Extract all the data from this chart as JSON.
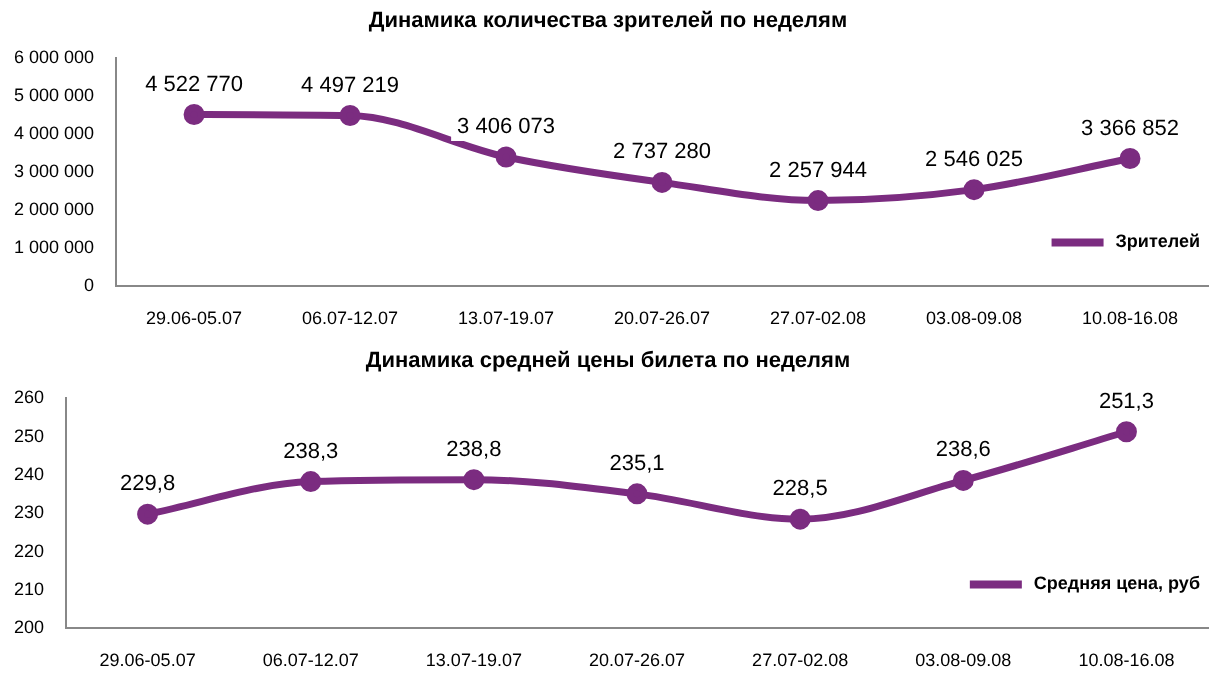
{
  "chart_data": [
    {
      "type": "line",
      "title": "Динамика количества зрителей по неделям",
      "categories": [
        "29.06-05.07",
        "06.07-12.07",
        "13.07-19.07",
        "20.07-26.07",
        "27.07-02.08",
        "03.08-09.08",
        "10.08-16.08"
      ],
      "series": [
        {
          "name": "Зрителей",
          "color": "#7b2c80",
          "values": [
            4522770,
            4497219,
            3406073,
            2737280,
            2257944,
            2546025,
            3366852
          ],
          "value_labels": [
            "4 522 770",
            "4 497 219",
            "3 406 073",
            "2 737 280",
            "2 257 944",
            "2 546 025",
            "3 366 852"
          ]
        }
      ],
      "ylim": [
        0,
        6000000
      ],
      "yticks": [
        {
          "value": 0,
          "label": "0"
        },
        {
          "value": 1000000,
          "label": "1 000 000"
        },
        {
          "value": 2000000,
          "label": "2 000 000"
        },
        {
          "value": 3000000,
          "label": "3 000 000"
        },
        {
          "value": 4000000,
          "label": "4 000 000"
        },
        {
          "value": 5000000,
          "label": "5 000 000"
        },
        {
          "value": 6000000,
          "label": "6 000 000"
        }
      ],
      "legend": "bottom right",
      "marker": "circle"
    },
    {
      "type": "line",
      "title": "Динамика средней цены билета по неделям",
      "categories": [
        "29.06-05.07",
        "06.07-12.07",
        "13.07-19.07",
        "20.07-26.07",
        "27.07-02.08",
        "03.08-09.08",
        "10.08-16.08"
      ],
      "series": [
        {
          "name": "Средняя цена, руб",
          "color": "#7b2c80",
          "values": [
            229.8,
            238.3,
            238.8,
            235.1,
            228.5,
            238.6,
            251.3
          ],
          "value_labels": [
            "229,8",
            "238,3",
            "238,8",
            "235,1",
            "228,5",
            "238,6",
            "251,3"
          ]
        }
      ],
      "ylim": [
        200,
        260
      ],
      "yticks": [
        200,
        210,
        220,
        230,
        240,
        250,
        260
      ],
      "legend": "bottom right",
      "marker": "circle"
    }
  ]
}
